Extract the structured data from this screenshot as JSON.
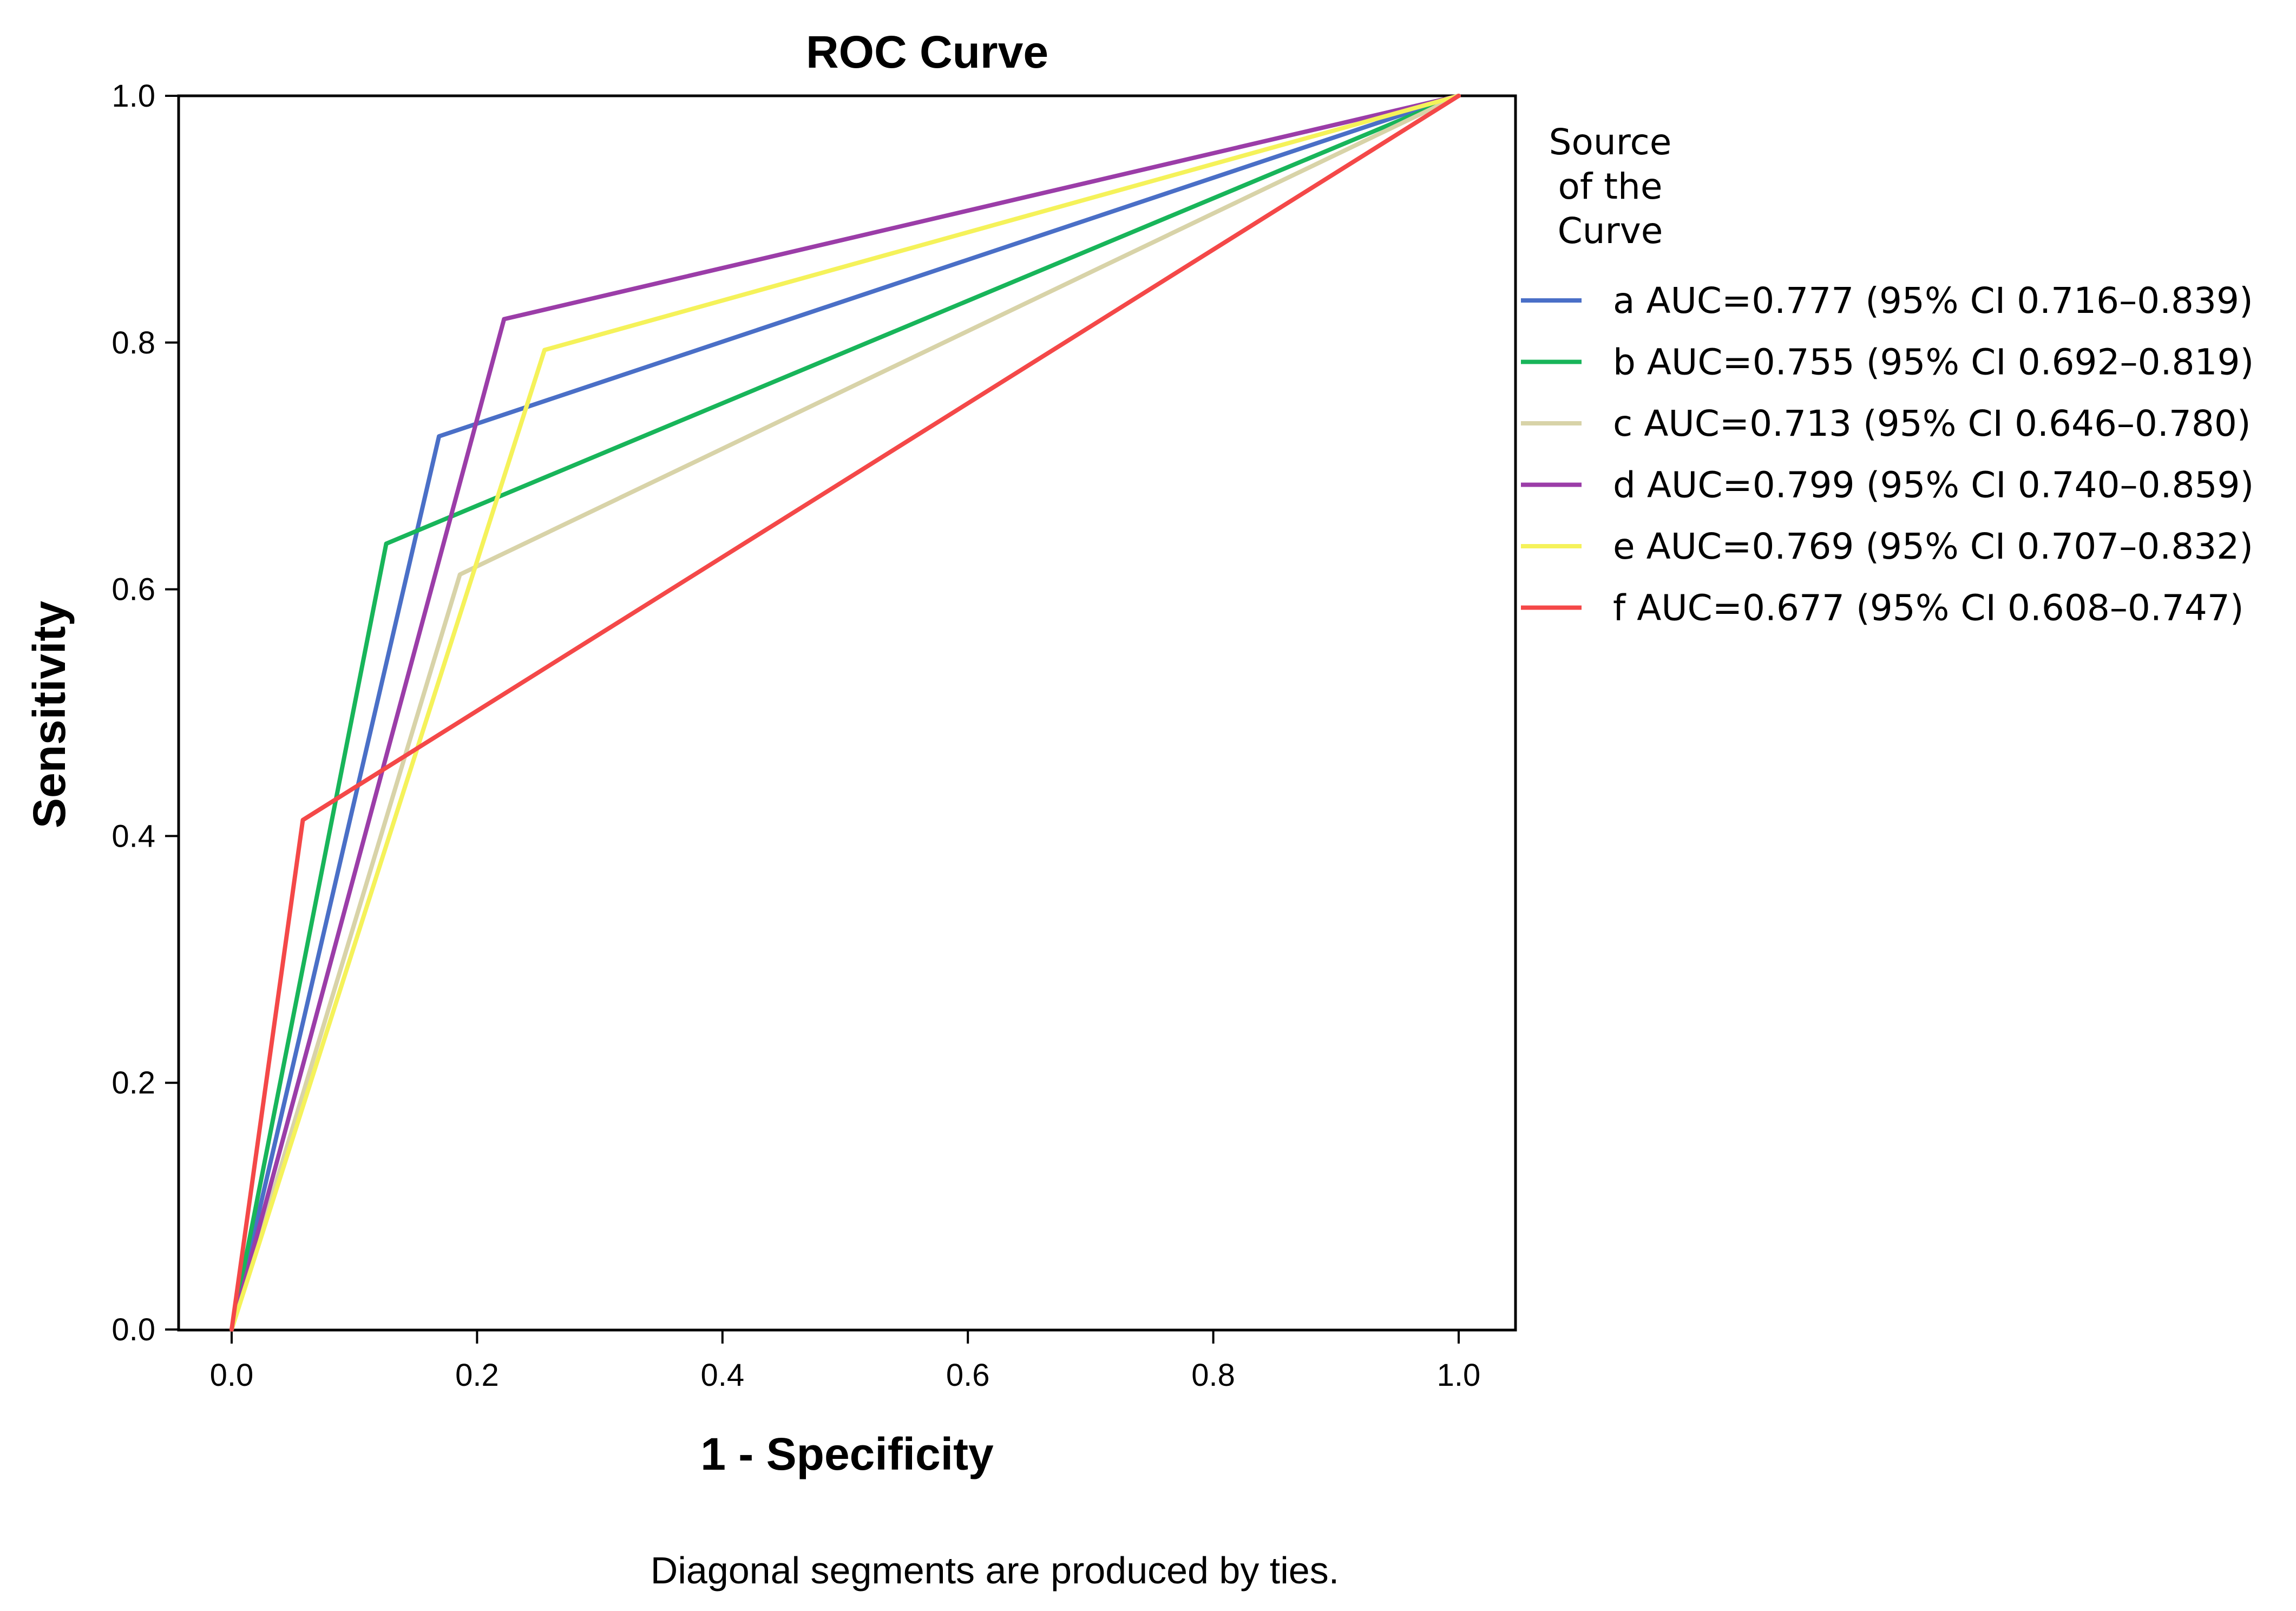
{
  "chart_data": {
    "type": "line",
    "title": "ROC Curve",
    "xlabel": "1 - Specificity",
    "ylabel": "Sensitivity",
    "xlim": [
      0.0,
      1.0
    ],
    "ylim": [
      0.0,
      1.0
    ],
    "xticks": [
      "0.0",
      "0.2",
      "0.4",
      "0.6",
      "0.8",
      "1.0"
    ],
    "yticks": [
      "0.0",
      "0.2",
      "0.4",
      "0.6",
      "0.8",
      "1.0"
    ],
    "grid": false,
    "legend": {
      "title_lines": [
        "Source",
        "of the",
        "Curve"
      ],
      "placement": "right"
    },
    "series": [
      {
        "name": "a",
        "label": "a AUC=0.777 (95% CI 0.716–0.839)",
        "color": "#4a6fc7",
        "x": [
          0,
          0.169,
          1
        ],
        "y": [
          0,
          0.724,
          1
        ]
      },
      {
        "name": "b",
        "label": "b AUC=0.755 (95% CI 0.692–0.819)",
        "color": "#18b55a",
        "x": [
          0,
          0.126,
          1
        ],
        "y": [
          0,
          0.637,
          1
        ]
      },
      {
        "name": "c",
        "label": "c AUC=0.713 (95% CI 0.646–0.780)",
        "color": "#d8d3a8",
        "x": [
          0,
          0.186,
          1
        ],
        "y": [
          0,
          0.612,
          1
        ]
      },
      {
        "name": "d",
        "label": "d AUC=0.799 (95% CI 0.740–0.859)",
        "color": "#9b3da8",
        "x": [
          0,
          0.222,
          1
        ],
        "y": [
          0,
          0.819,
          1
        ]
      },
      {
        "name": "e",
        "label": "e AUC=0.769 (95% CI 0.707–0.832)",
        "color": "#f5f25a",
        "x": [
          0,
          0.255,
          1
        ],
        "y": [
          0,
          0.794,
          1
        ]
      },
      {
        "name": "f",
        "label": "f AUC=0.677 (95% CI 0.608–0.747)",
        "color": "#f44848",
        "x": [
          0,
          0.058,
          1
        ],
        "y": [
          0,
          0.413,
          1
        ]
      }
    ],
    "footnote": "Diagonal segments are produced by ties."
  }
}
